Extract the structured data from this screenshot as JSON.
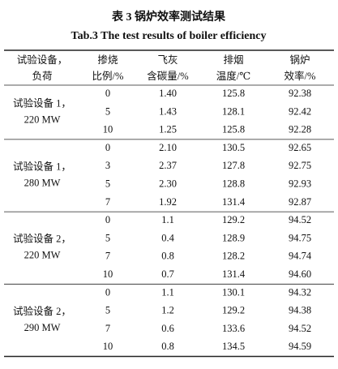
{
  "title": "表 3  锅炉效率测试结果",
  "subtitle": "Tab.3 The test results of boiler efficiency",
  "table": {
    "header": [
      [
        "试验设备，",
        "负荷"
      ],
      [
        "掺烧",
        "比例/%"
      ],
      [
        "飞灰",
        "含碳量/%"
      ],
      [
        "排烟",
        "温度/℃"
      ],
      [
        "锅炉",
        "效率/%"
      ]
    ],
    "groups": [
      {
        "label": [
          "试验设备 1，",
          "220 MW"
        ],
        "rows": [
          [
            "0",
            "1.40",
            "125.8",
            "92.38"
          ],
          [
            "5",
            "1.43",
            "128.1",
            "92.42"
          ],
          [
            "10",
            "1.25",
            "125.8",
            "92.28"
          ]
        ]
      },
      {
        "label": [
          "试验设备 1，",
          "280 MW"
        ],
        "rows": [
          [
            "0",
            "2.10",
            "130.5",
            "92.65"
          ],
          [
            "3",
            "2.37",
            "127.8",
            "92.75"
          ],
          [
            "5",
            "2.30",
            "128.8",
            "92.93"
          ],
          [
            "7",
            "1.92",
            "131.4",
            "92.87"
          ]
        ]
      },
      {
        "label": [
          "试验设备 2，",
          "220 MW"
        ],
        "rows": [
          [
            "0",
            "1.1",
            "129.2",
            "94.52"
          ],
          [
            "5",
            "0.4",
            "128.9",
            "94.75"
          ],
          [
            "7",
            "0.8",
            "128.2",
            "94.74"
          ],
          [
            "10",
            "0.7",
            "131.4",
            "94.60"
          ]
        ]
      },
      {
        "label": [
          "试验设备 2，",
          "290 MW"
        ],
        "rows": [
          [
            "0",
            "1.1",
            "130.1",
            "94.32"
          ],
          [
            "5",
            "1.2",
            "129.2",
            "94.38"
          ],
          [
            "7",
            "0.6",
            "133.6",
            "94.52"
          ],
          [
            "10",
            "0.8",
            "134.5",
            "94.59"
          ]
        ]
      }
    ]
  }
}
